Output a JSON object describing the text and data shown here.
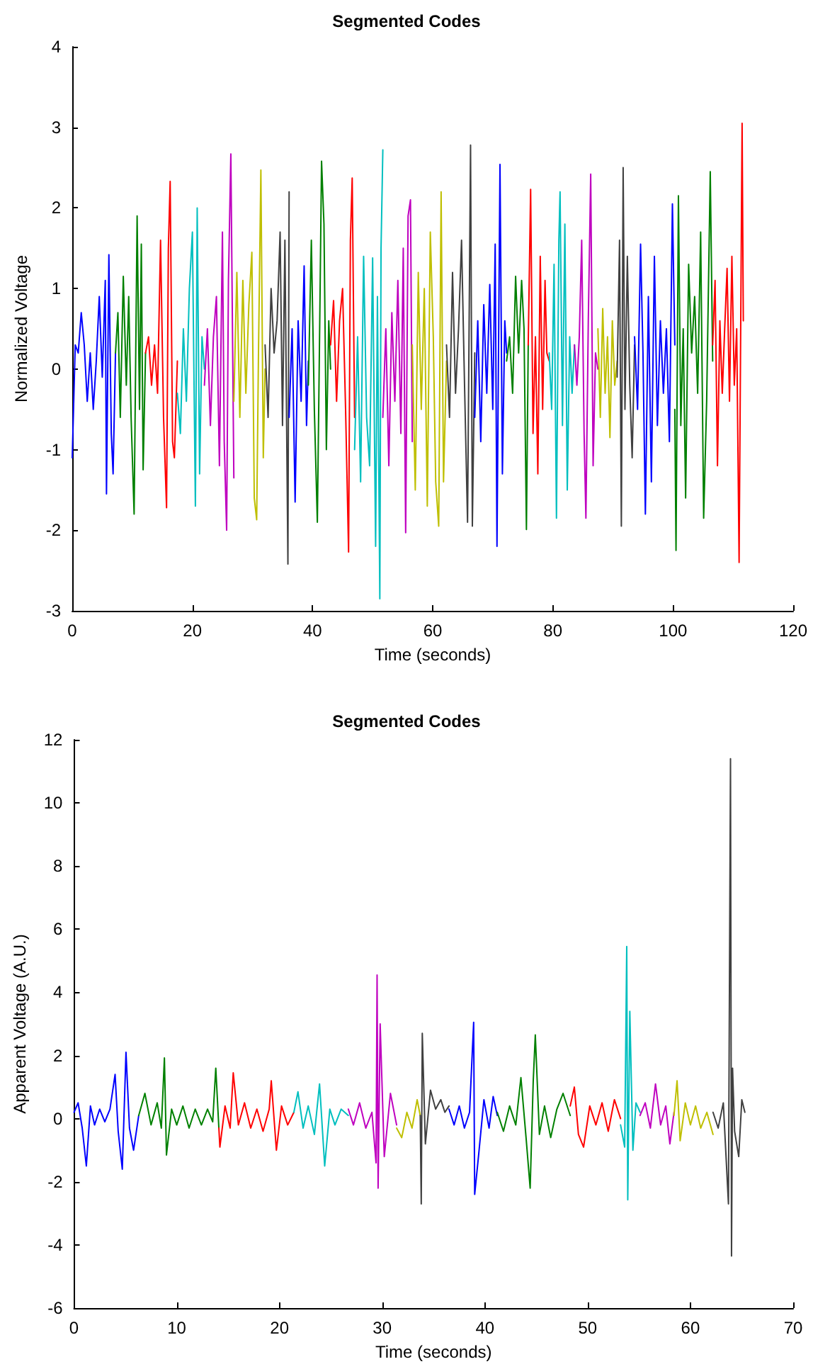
{
  "chart_data": [
    {
      "type": "line",
      "title": "Segmented Codes",
      "xlabel": "Time (seconds)",
      "ylabel": "Normalized Voltage",
      "xlim": [
        0,
        120
      ],
      "ylim": [
        -3,
        4
      ],
      "xticks": [
        0,
        20,
        40,
        60,
        80,
        100,
        120
      ],
      "yticks": [
        -3,
        -2,
        -1,
        0,
        1,
        2,
        3,
        4
      ],
      "grid": false,
      "marker": "none",
      "line_style": "solid",
      "series": [
        {
          "color": "#0000ff",
          "x": [
            0,
            0.5,
            1,
            1.5,
            2,
            2.5,
            3,
            3.5,
            4,
            4.5,
            5,
            5.5,
            5.7,
            6.1,
            6.5,
            6.8,
            7.2
          ],
          "values": [
            -1.1,
            0.3,
            0.2,
            0.7,
            0.3,
            -0.4,
            0.2,
            -0.5,
            0.1,
            0.9,
            -0.1,
            1.1,
            -1.55,
            1.42,
            -0.8,
            -1.3,
            0.2
          ]
        },
        {
          "color": "#008000",
          "x": [
            7.2,
            7.6,
            8,
            8.5,
            9,
            9.4,
            9.8,
            10.3,
            10.8,
            11.2,
            11.5,
            11.8,
            12.2
          ],
          "values": [
            0.2,
            0.7,
            -0.6,
            1.15,
            -0.2,
            0.9,
            -0.6,
            -1.8,
            1.9,
            -0.5,
            1.55,
            -1.25,
            0.2
          ]
        },
        {
          "color": "#ff0000",
          "x": [
            12.2,
            12.7,
            13.2,
            13.7,
            14.2,
            14.7,
            15.2,
            15.7,
            16,
            16.3,
            16.7,
            17,
            17.5
          ],
          "values": [
            0.2,
            0.4,
            -0.2,
            0.3,
            -0.3,
            1.6,
            -0.6,
            -1.72,
            1.5,
            2.33,
            -0.9,
            -1.1,
            0.1
          ]
        },
        {
          "color": "#00bfbf",
          "x": [
            17.5,
            18,
            18.5,
            19,
            19.5,
            20,
            20.5,
            20.8,
            21.2,
            21.6,
            22
          ],
          "values": [
            -0.3,
            -0.8,
            0.5,
            -0.4,
            1.0,
            1.7,
            -1.7,
            2.0,
            -1.3,
            0.4,
            0
          ]
        },
        {
          "color": "#bf00bf",
          "x": [
            22,
            22.5,
            23,
            23.5,
            24,
            24.5,
            25,
            25.3,
            25.7,
            26,
            26.4,
            26.9
          ],
          "values": [
            -0.2,
            0.5,
            -0.7,
            0.4,
            0.9,
            -1.2,
            1.7,
            -0.9,
            -2.0,
            1.1,
            2.67,
            -1.35
          ]
        },
        {
          "color": "#bfbf00",
          "x": [
            26.9,
            27.4,
            27.9,
            28.4,
            28.9,
            29.4,
            29.9,
            30.3,
            30.7,
            31,
            31.4,
            31.8,
            32.1
          ],
          "values": [
            -0.4,
            1.2,
            -0.6,
            1.1,
            -0.3,
            0.8,
            1.45,
            -1.6,
            -1.87,
            0.2,
            2.47,
            -1.1,
            0
          ]
        },
        {
          "color": "#404040",
          "x": [
            32.1,
            32.6,
            33.1,
            33.6,
            34.1,
            34.6,
            35,
            35.4,
            35.9,
            36.1
          ],
          "values": [
            0.3,
            -0.6,
            1.0,
            0.2,
            0.6,
            1.7,
            -0.7,
            1.6,
            -2.42,
            2.2
          ]
        },
        {
          "color": "#0000ff",
          "x": [
            36.1,
            36.6,
            37.1,
            37.6,
            38.1,
            38.6,
            39,
            39.3
          ],
          "values": [
            -0.6,
            0.5,
            -1.65,
            0.6,
            -0.4,
            1.28,
            -0.7,
            0.1
          ]
        },
        {
          "color": "#008000",
          "x": [
            39.3,
            39.8,
            40.3,
            40.8,
            41.2,
            41.5,
            41.9,
            42.3,
            42.7,
            43
          ],
          "values": [
            -0.2,
            1.6,
            -0.5,
            -1.9,
            0.6,
            2.58,
            1.8,
            -1.0,
            0.6,
            0
          ]
        },
        {
          "color": "#ff0000",
          "x": [
            43,
            43.5,
            44,
            44.5,
            45,
            45.5,
            46,
            46.3,
            46.6,
            47
          ],
          "values": [
            0.3,
            0.85,
            -0.4,
            0.6,
            1.0,
            -0.5,
            -2.27,
            1.6,
            2.37,
            -0.6
          ]
        },
        {
          "color": "#00bfbf",
          "x": [
            47,
            47.5,
            48,
            48.5,
            49,
            49.5,
            50,
            50.5,
            50.8,
            51.2,
            51.4,
            51.7
          ],
          "values": [
            -1.0,
            0.4,
            -1.4,
            1.4,
            -0.6,
            -1.2,
            1.38,
            -2.2,
            0.9,
            -2.85,
            1.5,
            2.72
          ]
        },
        {
          "color": "#bf00bf",
          "x": [
            51.7,
            52.2,
            52.7,
            53.2,
            53.7,
            54.2,
            54.7,
            55.1,
            55.5,
            55.9,
            56.3,
            56.6
          ],
          "values": [
            -0.6,
            0.5,
            -1.2,
            0.7,
            -0.4,
            1.1,
            -0.8,
            1.5,
            -2.03,
            1.9,
            2.1,
            -0.9
          ]
        },
        {
          "color": "#bfbf00",
          "x": [
            56.6,
            57.1,
            57.6,
            58.1,
            58.6,
            59.1,
            59.6,
            60.1,
            60.5,
            61,
            61.4,
            61.8,
            62.3
          ],
          "values": [
            0.3,
            -1.5,
            1.2,
            -0.5,
            1.0,
            -1.7,
            1.7,
            0.4,
            -1.4,
            -1.95,
            2.2,
            -1.4,
            0.1
          ]
        },
        {
          "color": "#404040",
          "x": [
            62.3,
            62.8,
            63.3,
            63.8,
            64.3,
            64.8,
            65.3,
            65.8,
            66.3,
            66.6,
            67
          ],
          "values": [
            0.3,
            -0.6,
            1.2,
            -0.3,
            0.5,
            1.6,
            -0.2,
            -1.9,
            2.78,
            -1.95,
            0.2
          ]
        },
        {
          "color": "#0000ff",
          "x": [
            67,
            67.5,
            68,
            68.5,
            69,
            69.5,
            70,
            70.4,
            70.7,
            71.2,
            71.6,
            72,
            72.3
          ],
          "values": [
            -0.6,
            0.6,
            -0.9,
            0.8,
            -0.3,
            1.05,
            -0.5,
            1.55,
            -2.2,
            2.54,
            -1.3,
            0.6,
            0.2
          ]
        },
        {
          "color": "#008000",
          "x": [
            72.3,
            72.8,
            73.3,
            73.8,
            74.3,
            74.8,
            75.2,
            75.6,
            75.9
          ],
          "values": [
            0.1,
            0.4,
            -0.3,
            1.15,
            0.2,
            1.1,
            0.5,
            -1.99,
            0.3
          ]
        },
        {
          "color": "#ff0000",
          "x": [
            75.9,
            76.3,
            76.7,
            77.1,
            77.5,
            77.9,
            78.3,
            78.7,
            79,
            79.4
          ],
          "values": [
            0.3,
            2.23,
            -0.8,
            0.4,
            -1.3,
            1.4,
            -0.5,
            1.1,
            0.2,
            0.1
          ]
        },
        {
          "color": "#00bfbf",
          "x": [
            79.4,
            79.8,
            80.2,
            80.6,
            81,
            81.2,
            81.6,
            82,
            82.4,
            82.8,
            83.2,
            83.6
          ],
          "values": [
            0.2,
            -0.5,
            1.3,
            -1.85,
            1.6,
            2.2,
            -0.7,
            1.8,
            -1.5,
            0.4,
            -0.3,
            0.3
          ]
        },
        {
          "color": "#bf00bf",
          "x": [
            83.6,
            84,
            84.4,
            84.8,
            85.2,
            85.5,
            85.9,
            86.3,
            86.7,
            87.1,
            87.5
          ],
          "values": [
            0.3,
            -0.2,
            0.4,
            1.6,
            -0.8,
            -1.85,
            0.6,
            2.42,
            -1.2,
            0.2,
            0
          ]
        },
        {
          "color": "#bfbf00",
          "x": [
            87.5,
            87.9,
            88.3,
            88.7,
            89.1,
            89.5,
            89.9,
            90.3,
            90.7
          ],
          "values": [
            0.5,
            -0.6,
            0.75,
            -0.3,
            0.4,
            -0.85,
            0.6,
            -0.2,
            0.1
          ]
        },
        {
          "color": "#404040",
          "x": [
            90.7,
            91.1,
            91.4,
            91.7,
            92,
            92.4,
            92.8,
            93.2,
            93.6
          ],
          "values": [
            -0.1,
            1.6,
            -1.95,
            2.5,
            -0.5,
            1.4,
            -0.2,
            -1.1,
            0.3
          ]
        },
        {
          "color": "#0000ff",
          "x": [
            93.6,
            94.1,
            94.6,
            95,
            95.4,
            95.9,
            96.4,
            96.9,
            97.4,
            97.9,
            98.4,
            98.9,
            99.4,
            99.9,
            100.3
          ],
          "values": [
            0.4,
            -0.5,
            1.55,
            0.2,
            -1.8,
            0.9,
            -1.4,
            1.4,
            -0.7,
            0.6,
            -0.3,
            0.5,
            -0.9,
            2.05,
            0.3
          ]
        },
        {
          "color": "#008000",
          "x": [
            100.3,
            100.5,
            100.9,
            101.3,
            101.7,
            102.1,
            102.6,
            103.1,
            103.6,
            104.1,
            104.6,
            105.1,
            105.6,
            106.2,
            106.6
          ],
          "values": [
            -0.5,
            -2.25,
            2.15,
            -0.7,
            0.5,
            -1.6,
            1.3,
            0.2,
            0.9,
            -0.3,
            1.7,
            -1.85,
            -0.4,
            2.45,
            0.1
          ]
        },
        {
          "color": "#ff0000",
          "x": [
            106.6,
            107,
            107.4,
            107.8,
            108.2,
            108.6,
            109,
            109.4,
            109.8,
            110.2,
            110.6,
            111,
            111.5,
            111.7
          ],
          "values": [
            0.3,
            1.1,
            -1.2,
            0.6,
            -0.3,
            0.5,
            1.25,
            -0.4,
            1.4,
            -0.2,
            0.5,
            -2.4,
            3.05,
            0.6
          ]
        }
      ]
    },
    {
      "type": "line",
      "title": "Segmented Codes",
      "xlabel": "Time (seconds)",
      "ylabel": "Apparent Voltage (A.U.)",
      "xlim": [
        0,
        70
      ],
      "ylim": [
        -6,
        12
      ],
      "xticks": [
        0,
        10,
        20,
        30,
        40,
        50,
        60,
        70
      ],
      "yticks": [
        -6,
        -4,
        -2,
        0,
        2,
        4,
        6,
        8,
        10,
        12
      ],
      "grid": false,
      "marker": "none",
      "line_style": "solid",
      "series": [
        {
          "color": "#0000ff",
          "x": [
            0,
            0.4,
            0.8,
            1.2,
            1.6,
            2,
            2.5,
            3,
            3.5,
            4,
            4.3,
            4.7,
            5.06,
            5.4,
            5.8,
            6.3
          ],
          "values": [
            0.2,
            0.5,
            -0.3,
            -1.5,
            0.4,
            -0.2,
            0.3,
            -0.1,
            0.3,
            1.4,
            -0.4,
            -1.6,
            2.1,
            -0.3,
            -1.0,
            0.1
          ]
        },
        {
          "color": "#008000",
          "x": [
            6.3,
            6.9,
            7.5,
            8.1,
            8.5,
            8.8,
            9,
            9.5,
            10,
            10.6,
            11.2,
            11.8,
            12.4,
            13,
            13.5,
            13.8,
            14.1
          ],
          "values": [
            0.1,
            0.8,
            -0.2,
            0.5,
            -0.3,
            1.92,
            -1.15,
            0.3,
            -0.2,
            0.4,
            -0.3,
            0.3,
            -0.2,
            0.3,
            -0.1,
            1.6,
            -0.3
          ]
        },
        {
          "color": "#ff0000",
          "x": [
            14.1,
            14.2,
            14.7,
            15.2,
            15.5,
            16,
            16.6,
            17.2,
            17.8,
            18.4,
            19,
            19.2,
            19.7,
            20.2,
            20.8,
            21.4
          ],
          "values": [
            -0.3,
            -0.9,
            0.4,
            -0.3,
            1.45,
            -0.2,
            0.5,
            -0.3,
            0.3,
            -0.4,
            0.3,
            1.2,
            -1.0,
            0.4,
            -0.2,
            0.2
          ]
        },
        {
          "color": "#00bfbf",
          "x": [
            21.4,
            21.8,
            22.3,
            22.8,
            23.4,
            23.9,
            24.4,
            24.9,
            25.4,
            26,
            26.7
          ],
          "values": [
            0.2,
            0.85,
            -0.3,
            0.4,
            -0.5,
            1.1,
            -1.5,
            0.3,
            -0.2,
            0.3,
            0.1
          ]
        },
        {
          "color": "#bf00bf",
          "x": [
            26.7,
            27.2,
            27.8,
            28.4,
            29,
            29.4,
            29.5,
            29.6,
            29.8,
            30.2,
            30.8,
            31.4
          ],
          "values": [
            0.3,
            -0.2,
            0.5,
            -0.3,
            0.2,
            -1.4,
            4.55,
            -2.2,
            3.0,
            -1.2,
            0.8,
            -0.2
          ]
        },
        {
          "color": "#bfbf00",
          "x": [
            31.4,
            31.9,
            32.4,
            32.9,
            33.4,
            33.7
          ],
          "values": [
            -0.3,
            -0.6,
            0.2,
            -0.3,
            0.6,
            0.1
          ]
        },
        {
          "color": "#404040",
          "x": [
            33.7,
            33.8,
            33.9,
            34.2,
            34.7,
            35.2,
            35.7,
            36.1,
            36.5
          ],
          "values": [
            0.1,
            -2.7,
            2.7,
            -0.8,
            0.9,
            0.3,
            0.6,
            0.2,
            0.4
          ]
        },
        {
          "color": "#0000ff",
          "x": [
            36.5,
            37,
            37.5,
            38,
            38.5,
            38.9,
            39,
            39.4,
            39.9,
            40.4,
            40.8,
            41.2
          ],
          "values": [
            0.3,
            -0.2,
            0.4,
            -0.3,
            0.2,
            3.05,
            -2.4,
            -1.1,
            0.6,
            -0.3,
            0.7,
            0.1
          ]
        },
        {
          "color": "#008000",
          "x": [
            41.2,
            41.8,
            42.4,
            43,
            43.5,
            44,
            44.4,
            44.7,
            44.9,
            45.3,
            45.8,
            46.4,
            47,
            47.6,
            48.3
          ],
          "values": [
            0.2,
            -0.4,
            0.4,
            -0.2,
            1.3,
            -0.6,
            -2.2,
            1.2,
            2.65,
            -0.5,
            0.4,
            -0.6,
            0.3,
            0.8,
            0.1
          ]
        },
        {
          "color": "#ff0000",
          "x": [
            48.3,
            48.7,
            49.1,
            49.6,
            50.2,
            50.8,
            51.4,
            52,
            52.6,
            53.2
          ],
          "values": [
            0.4,
            1.0,
            -0.5,
            -0.9,
            0.4,
            -0.2,
            0.5,
            -0.4,
            0.6,
            0
          ]
        },
        {
          "color": "#00bfbf",
          "x": [
            53.2,
            53.6,
            53.8,
            53.9,
            54.1,
            54.4,
            54.7,
            55.1
          ],
          "values": [
            -0.2,
            -0.9,
            5.45,
            -2.57,
            3.4,
            -1.0,
            0.5,
            0.2
          ]
        },
        {
          "color": "#bf00bf",
          "x": [
            55.1,
            55.6,
            56.1,
            56.6,
            57.1,
            57.6,
            58,
            58.4
          ],
          "values": [
            0.1,
            0.5,
            -0.3,
            1.1,
            -0.2,
            0.4,
            -0.8,
            0.2
          ]
        },
        {
          "color": "#bfbf00",
          "x": [
            58.4,
            58.7,
            59,
            59.5,
            60,
            60.5,
            61,
            61.6,
            62.2
          ],
          "values": [
            0.1,
            1.2,
            -0.7,
            0.5,
            -0.2,
            0.4,
            -0.3,
            0.2,
            -0.5
          ]
        },
        {
          "color": "#404040",
          "x": [
            62.2,
            62.7,
            63.2,
            63.7,
            63.9,
            64,
            64.1,
            64.3,
            64.7,
            65,
            65.3
          ],
          "values": [
            0.2,
            -0.3,
            0.5,
            -2.7,
            11.4,
            -4.35,
            1.6,
            -0.4,
            -1.2,
            0.6,
            0.2
          ]
        }
      ]
    }
  ]
}
